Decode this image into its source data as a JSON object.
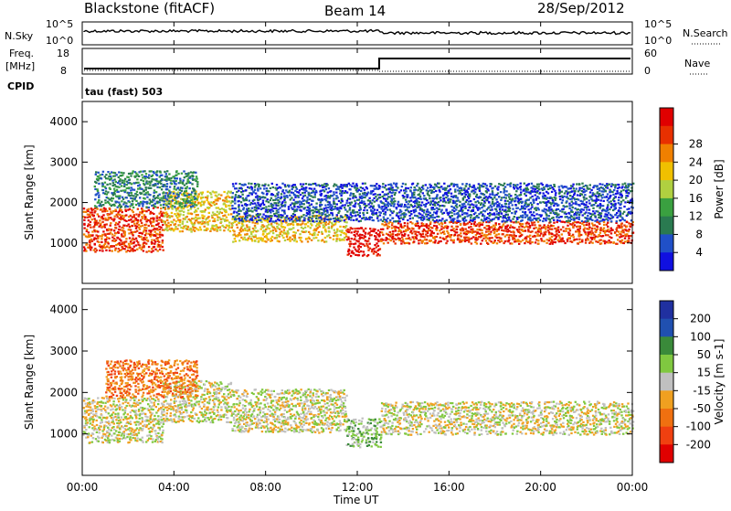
{
  "header": {
    "site": "Blackstone (fitACF)",
    "beam": "Beam 14",
    "date": "28/Sep/2012"
  },
  "side_labels": {
    "nsky": "N.Sky",
    "nsearch": "N.Search",
    "freq_line1": "Freq.",
    "freq_line2": "[MHz]",
    "nave": "Nave",
    "cpid": "CPID"
  },
  "status_strip": {
    "nsky_ticks": [
      "10^5",
      "10^0"
    ],
    "nsearch_ticks": [
      "10^5",
      "10^0"
    ],
    "freq_ticks": [
      "18",
      "8"
    ],
    "nave_ticks": [
      "60",
      "0"
    ]
  },
  "cpid_text": "tau (fast) 503",
  "chart_data": [
    {
      "type": "heatmap",
      "name_text": "Power",
      "ylabel": "Slant Range [km]",
      "yticks": [
        "1000",
        "2000",
        "3000",
        "4000"
      ],
      "ylim": [
        0,
        4500
      ],
      "xlim": [
        0,
        24
      ],
      "colorbar_label": "Power [dB]",
      "colorbar_ticks": [
        "4",
        "8",
        "12",
        "16",
        "20",
        "24",
        "28"
      ],
      "colorbar_colors": [
        "#1010e0",
        "#2050c8",
        "#2a7a50",
        "#3aa040",
        "#b0d040",
        "#f0c000",
        "#f08000",
        "#e83000",
        "#e00000"
      ],
      "echo_bands": [
        {
          "t0": 0.0,
          "t1": 3.5,
          "r0": 800,
          "r1": 1900,
          "level": 7
        },
        {
          "t0": 3.5,
          "t1": 6.5,
          "r0": 1300,
          "r1": 2300,
          "level": 5
        },
        {
          "t0": 6.5,
          "t1": 11.5,
          "r0": 1050,
          "r1": 1700,
          "level": 5
        },
        {
          "t0": 11.5,
          "t1": 13.0,
          "r0": 700,
          "r1": 1400,
          "level": 8
        },
        {
          "t0": 13.0,
          "t1": 24.0,
          "r0": 1000,
          "r1": 1550,
          "level": 7
        },
        {
          "t0": 0.5,
          "t1": 5.0,
          "r0": 1900,
          "r1": 2800,
          "level": 2
        },
        {
          "t0": 6.5,
          "t1": 24.0,
          "r0": 1550,
          "r1": 2500,
          "level": 1
        }
      ]
    },
    {
      "type": "heatmap",
      "name_text": "Velocity",
      "ylabel": "Slant Range [km]",
      "yticks": [
        "1000",
        "2000",
        "3000",
        "4000"
      ],
      "ylim": [
        0,
        4500
      ],
      "xlim": [
        0,
        24
      ],
      "xticks": [
        "00:00",
        "04:00",
        "08:00",
        "12:00",
        "16:00",
        "20:00",
        "00:00"
      ],
      "xlabel": "Time UT",
      "colorbar_label": "Velocity [m s-1]",
      "colorbar_ticks": [
        "200",
        "100",
        "50",
        "15",
        "-15",
        "-50",
        "-100",
        "-200"
      ],
      "colorbar_colors": [
        "#2030a0",
        "#2050b0",
        "#3a8a3a",
        "#80c840",
        "#c0c0c0",
        "#f0a020",
        "#f07010",
        "#f04010",
        "#e00000"
      ],
      "echo_bands": [
        {
          "t0": 0.0,
          "t1": 3.5,
          "r0": 800,
          "r1": 1900,
          "level": 4
        },
        {
          "t0": 3.5,
          "t1": 6.5,
          "r0": 1300,
          "r1": 2300,
          "level": 4
        },
        {
          "t0": 6.5,
          "t1": 11.5,
          "r0": 1050,
          "r1": 2100,
          "level": 4
        },
        {
          "t0": 11.5,
          "t1": 13.0,
          "r0": 700,
          "r1": 1400,
          "level": 3
        },
        {
          "t0": 13.0,
          "t1": 24.0,
          "r0": 1000,
          "r1": 1800,
          "level": 4
        },
        {
          "t0": 1.0,
          "t1": 5.0,
          "r0": 1900,
          "r1": 2800,
          "level": 6
        }
      ]
    }
  ]
}
